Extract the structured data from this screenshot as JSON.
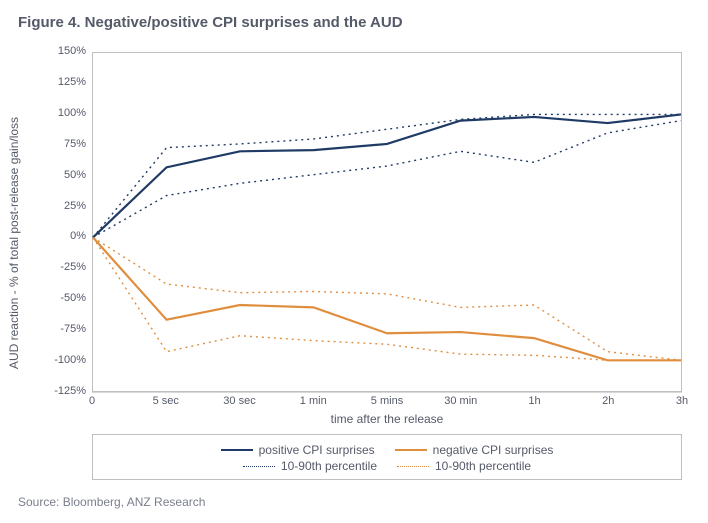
{
  "title": "Figure 4. Negative/positive CPI surprises and the AUD",
  "source": "Source: Bloomberg, ANZ Research",
  "chart": {
    "type": "line",
    "ylabel": "AUD reaction - % of total post-release gain/loss",
    "xlabel": "time after the release",
    "background_color": "#ffffff",
    "grid_color": "#d9d9d9",
    "axis_color": "#bfbfbf",
    "zero_line_color": "#808080",
    "text_color": "#555a69",
    "title_fontsize": 15,
    "axis_fontsize": 12,
    "tick_fontsize": 11,
    "ylim": [
      -125,
      150
    ],
    "yticks": [
      -125,
      -100,
      -75,
      -50,
      -25,
      0,
      25,
      50,
      75,
      100,
      125,
      150
    ],
    "ytick_labels": [
      "-125%",
      "-100%",
      "-75%",
      "-50%",
      "-25%",
      "0%",
      "25%",
      "50%",
      "75%",
      "100%",
      "125%",
      "150%"
    ],
    "xcategories": [
      "0",
      "5 sec",
      "30 sec",
      "1 min",
      "5 mins",
      "30 min",
      "1h",
      "2h",
      "3h"
    ],
    "series": [
      {
        "name": "positive CPI surprises",
        "color": "#1f3a65",
        "dash": "solid",
        "width": 2.2,
        "values": [
          0,
          57,
          70,
          71,
          76,
          95,
          98,
          93,
          100
        ]
      },
      {
        "name": "negative CPI surprises",
        "color": "#e08e3e",
        "dash": "solid",
        "width": 2.2,
        "values": [
          0,
          -67,
          -55,
          -57,
          -78,
          -77,
          -82,
          -100,
          -100
        ]
      },
      {
        "name": "10-90th percentile",
        "color": "#1f3a65",
        "dash": "dotted",
        "width": 1.4,
        "values_upper": [
          0,
          73,
          76,
          80,
          88,
          96,
          100,
          100,
          100
        ],
        "values_lower": [
          0,
          34,
          44,
          51,
          58,
          70,
          61,
          85,
          95
        ]
      },
      {
        "name": "10-90th percentile",
        "color": "#e08e3e",
        "dash": "dotted",
        "width": 1.4,
        "values_upper": [
          0,
          -38,
          -45,
          -44,
          -46,
          -57,
          -55,
          -93,
          -100
        ],
        "values_lower": [
          0,
          -93,
          -80,
          -84,
          -87,
          -95,
          -96,
          -100,
          -100
        ]
      }
    ],
    "legend": {
      "rows": [
        [
          0,
          1
        ],
        [
          2,
          3
        ]
      ]
    }
  }
}
